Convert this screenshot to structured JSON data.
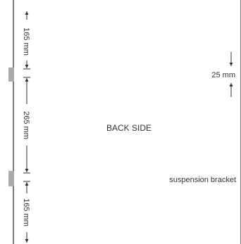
{
  "diagram": {
    "labels": {
      "back_side": "BACK SIDE",
      "suspension_bracket": "suspension bracket"
    },
    "dimensions": {
      "top_segment": "165 mm",
      "middle_segment": "265 mm",
      "bottom_segment": "165 mm",
      "bracket_height": "25 mm"
    },
    "colors": {
      "outline": "#333333",
      "bracket": "#aaaaaa",
      "text": "#333333"
    }
  }
}
